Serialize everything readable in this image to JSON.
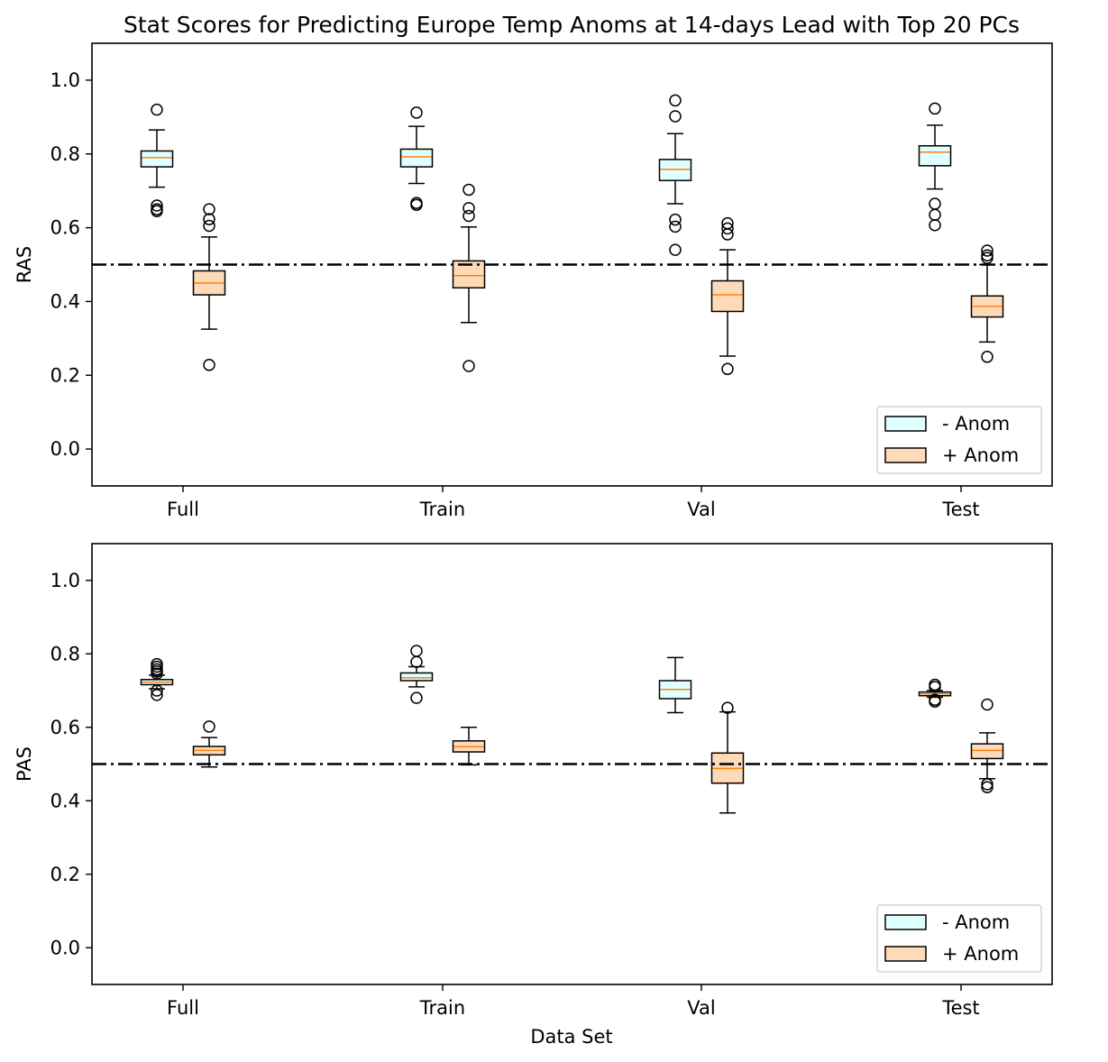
{
  "chart_data": {
    "type": "boxplot",
    "title": "Stat Scores for Predicting Europe Temp Anoms at 14-days Lead with Top 20 PCs",
    "xlabel": "Data Set",
    "categories": [
      "Full",
      "Train",
      "Val",
      "Test"
    ],
    "colors": {
      "neg_fill": "#e0ffff",
      "pos_fill": "#ffdab9",
      "median": "#ff7f0e",
      "edge": "#000000",
      "ref_line": "#000000"
    },
    "subplots": [
      {
        "ylabel": "RAS",
        "ylim": [
          -0.1,
          1.1
        ],
        "yticks": [
          "0.0",
          "0.2",
          "0.4",
          "0.6",
          "0.8",
          "1.0"
        ],
        "ref_line": 0.5,
        "legend_position": "lower-right",
        "series": [
          {
            "name": "- Anom",
            "boxes": [
              {
                "whislo": 0.71,
                "q1": 0.765,
                "med": 0.79,
                "q3": 0.808,
                "whishi": 0.865,
                "fliers": [
                  0.92,
                  0.66,
                  0.65,
                  0.645
                ]
              },
              {
                "whislo": 0.72,
                "q1": 0.765,
                "med": 0.792,
                "q3": 0.813,
                "whishi": 0.875,
                "fliers": [
                  0.912,
                  0.667,
                  0.662
                ]
              },
              {
                "whislo": 0.665,
                "q1": 0.728,
                "med": 0.758,
                "q3": 0.785,
                "whishi": 0.855,
                "fliers": [
                  0.945,
                  0.902,
                  0.622,
                  0.603,
                  0.54
                ]
              },
              {
                "whislo": 0.705,
                "q1": 0.768,
                "med": 0.805,
                "q3": 0.822,
                "whishi": 0.878,
                "fliers": [
                  0.923,
                  0.665,
                  0.635,
                  0.607
                ]
              }
            ]
          },
          {
            "name": "+ Anom",
            "boxes": [
              {
                "whislo": 0.325,
                "q1": 0.418,
                "med": 0.45,
                "q3": 0.483,
                "whishi": 0.575,
                "fliers": [
                  0.65,
                  0.623,
                  0.605,
                  0.228
                ]
              },
              {
                "whislo": 0.343,
                "q1": 0.437,
                "med": 0.47,
                "q3": 0.51,
                "whishi": 0.602,
                "fliers": [
                  0.703,
                  0.653,
                  0.632,
                  0.225
                ]
              },
              {
                "whislo": 0.252,
                "q1": 0.373,
                "med": 0.418,
                "q3": 0.456,
                "whishi": 0.54,
                "fliers": [
                  0.612,
                  0.598,
                  0.582,
                  0.217
                ]
              },
              {
                "whislo": 0.29,
                "q1": 0.358,
                "med": 0.387,
                "q3": 0.415,
                "whishi": 0.5,
                "fliers": [
                  0.538,
                  0.525,
                  0.518,
                  0.25
                ]
              }
            ]
          }
        ]
      },
      {
        "ylabel": "PAS",
        "ylim": [
          -0.1,
          1.1
        ],
        "yticks": [
          "0.0",
          "0.2",
          "0.4",
          "0.6",
          "0.8",
          "1.0"
        ],
        "ref_line": 0.5,
        "legend_position": "lower-right",
        "series": [
          {
            "name": "- Anom",
            "boxes": [
              {
                "whislo": 0.705,
                "q1": 0.716,
                "med": 0.723,
                "q3": 0.73,
                "whishi": 0.742,
                "fliers": [
                  0.772,
                  0.765,
                  0.758,
                  0.752,
                  0.746,
                  0.7,
                  0.688
                ]
              },
              {
                "whislo": 0.71,
                "q1": 0.727,
                "med": 0.735,
                "q3": 0.748,
                "whishi": 0.765,
                "fliers": [
                  0.808,
                  0.778,
                  0.68
                ]
              },
              {
                "whislo": 0.64,
                "q1": 0.678,
                "med": 0.703,
                "q3": 0.727,
                "whishi": 0.79,
                "fliers": []
              },
              {
                "whislo": 0.682,
                "q1": 0.686,
                "med": 0.691,
                "q3": 0.696,
                "whishi": 0.7,
                "fliers": [
                  0.716,
                  0.71,
                  0.675,
                  0.67
                ]
              }
            ]
          },
          {
            "name": "+ Anom",
            "boxes": [
              {
                "whislo": 0.492,
                "q1": 0.525,
                "med": 0.537,
                "q3": 0.548,
                "whishi": 0.572,
                "fliers": [
                  0.602
                ]
              },
              {
                "whislo": 0.498,
                "q1": 0.533,
                "med": 0.547,
                "q3": 0.563,
                "whishi": 0.6,
                "fliers": []
              },
              {
                "whislo": 0.367,
                "q1": 0.448,
                "med": 0.488,
                "q3": 0.53,
                "whishi": 0.642,
                "fliers": [
                  0.653
                ]
              },
              {
                "whislo": 0.46,
                "q1": 0.515,
                "med": 0.537,
                "q3": 0.555,
                "whishi": 0.585,
                "fliers": [
                  0.662,
                  0.445,
                  0.437
                ]
              }
            ]
          }
        ]
      }
    ]
  }
}
